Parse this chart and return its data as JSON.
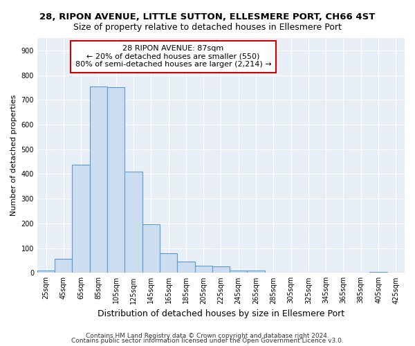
{
  "title": "28, RIPON AVENUE, LITTLE SUTTON, ELLESMERE PORT, CH66 4ST",
  "subtitle": "Size of property relative to detached houses in Ellesmere Port",
  "xlabel": "Distribution of detached houses by size in Ellesmere Port",
  "ylabel": "Number of detached properties",
  "footnote1": "Contains HM Land Registry data © Crown copyright and database right 2024.",
  "footnote2": "Contains public sector information licensed under the Open Government Licence v3.0.",
  "bar_labels": [
    "25sqm",
    "45sqm",
    "65sqm",
    "85sqm",
    "105sqm",
    "125sqm",
    "145sqm",
    "165sqm",
    "185sqm",
    "205sqm",
    "225sqm",
    "245sqm",
    "265sqm",
    "285sqm",
    "305sqm",
    "325sqm",
    "345sqm",
    "365sqm",
    "385sqm",
    "405sqm",
    "425sqm"
  ],
  "bar_values": [
    10,
    58,
    437,
    754,
    750,
    410,
    198,
    78,
    45,
    30,
    27,
    10,
    10,
    0,
    0,
    0,
    0,
    0,
    0,
    5,
    0
  ],
  "bar_color": "#ccddf0",
  "bar_edge_color": "#5b9bd5",
  "plot_bg_color": "#e8eef5",
  "fig_bg_color": "#ffffff",
  "grid_color": "#ffffff",
  "ylim": [
    0,
    950
  ],
  "yticks": [
    0,
    100,
    200,
    300,
    400,
    500,
    600,
    700,
    800,
    900
  ],
  "annotation_text": "28 RIPON AVENUE: 87sqm\n← 20% of detached houses are smaller (550)\n80% of semi-detached houses are larger (2,214) →",
  "annotation_box_color": "white",
  "annotation_box_edge": "#cc0000",
  "title_fontsize": 9.5,
  "subtitle_fontsize": 9,
  "ylabel_fontsize": 8,
  "xlabel_fontsize": 9,
  "tick_fontsize": 7,
  "annot_fontsize": 8,
  "footnote_fontsize": 6.5
}
